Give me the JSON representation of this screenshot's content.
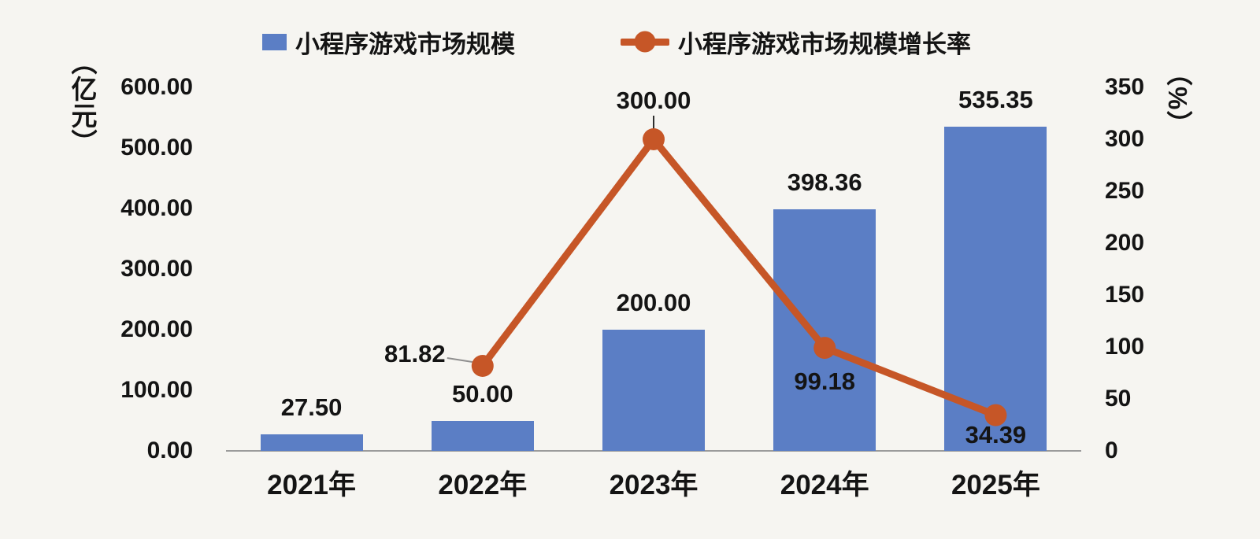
{
  "colors": {
    "background": "#f6f5f1",
    "bar": "#5b7ec5",
    "line": "#c65627",
    "axis_line": "#9b9b9b",
    "text": "#141414",
    "leader_grey": "#8f8f8f",
    "leader_dark": "#2e2e2e"
  },
  "legend": {
    "items": [
      {
        "label": "小程序游戏市场规模",
        "marker": "bar-swatch",
        "color": "#5b7ec5"
      },
      {
        "label": "小程序游戏市场规模增长率",
        "marker": "line-dot",
        "color": "#c65627"
      }
    ]
  },
  "left_axis": {
    "unit": "（亿元）",
    "tick_labels": [
      "600.00",
      "500.00",
      "400.00",
      "300.00",
      "200.00",
      "100.00",
      "0.00"
    ],
    "tick_values": [
      600,
      500,
      400,
      300,
      200,
      100,
      0
    ]
  },
  "right_axis": {
    "unit": "（%）",
    "tick_labels": [
      "350",
      "300",
      "250",
      "200",
      "150",
      "100",
      "50",
      "0"
    ],
    "tick_values": [
      350,
      300,
      250,
      200,
      150,
      100,
      50,
      0
    ]
  },
  "chart_data": {
    "type": "bar+line combo",
    "categories": [
      "2021年",
      "2022年",
      "2023年",
      "2024年",
      "2025年"
    ],
    "series": [
      {
        "name": "小程序游戏市场规模",
        "type": "bar",
        "axis": "left",
        "color": "#5b7ec5",
        "values": [
          27.5,
          50.0,
          200.0,
          398.36,
          535.35
        ],
        "labels": [
          "27.50",
          "50.00",
          "200.00",
          "398.36",
          "535.35"
        ]
      },
      {
        "name": "小程序游戏市场规模增长率",
        "type": "line",
        "axis": "right",
        "color": "#c65627",
        "values": [
          null,
          81.82,
          300.0,
          99.18,
          34.39
        ],
        "labels": [
          null,
          "81.82",
          "300.00",
          "99.18",
          "34.39"
        ]
      }
    ],
    "left_ylabel": "（亿元）",
    "right_ylabel": "（%）",
    "left_ylim": [
      0,
      600
    ],
    "right_ylim": [
      0,
      350
    ],
    "grid": false,
    "legend_position": "top"
  }
}
